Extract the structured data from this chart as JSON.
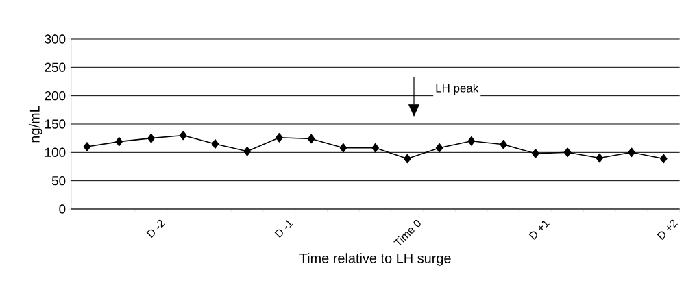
{
  "chart_data": {
    "type": "line",
    "xlabel": "Time relative to LH surge",
    "ylabel": "ng/mL",
    "categories": [
      null,
      null,
      "D -2",
      null,
      null,
      null,
      "D -1",
      null,
      null,
      null,
      "Time 0",
      null,
      null,
      null,
      "D +1",
      null,
      null,
      null,
      "D +2"
    ],
    "values": [
      110,
      119,
      125,
      130,
      115,
      102,
      126,
      124,
      108,
      108,
      89,
      108,
      120,
      114,
      98,
      100,
      90,
      100,
      89
    ],
    "color": "#000000",
    "marker": "diamond",
    "line_style": "solid",
    "ylim": [
      0,
      300
    ],
    "yticks": [
      0,
      50,
      100,
      150,
      200,
      250,
      300
    ],
    "grid": "y",
    "annotations": [
      "LH peak"
    ]
  }
}
